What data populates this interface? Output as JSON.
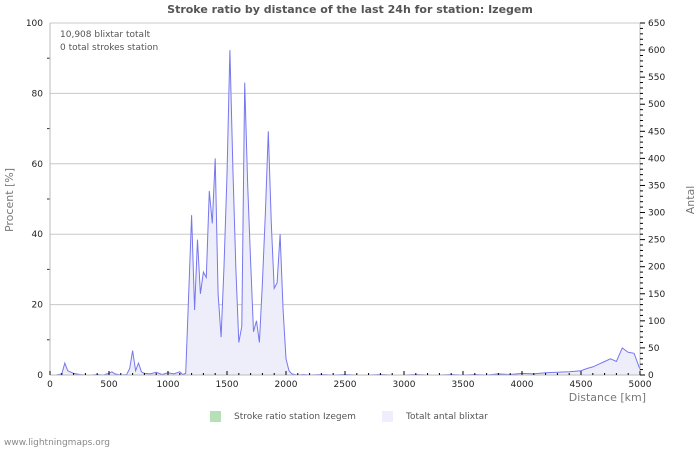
{
  "title": "Stroke ratio by distance of the last 24h for station: Izegem",
  "info": {
    "line1": "10,908 blixtar totalt",
    "line2": "0 total strokes station"
  },
  "axes": {
    "left_title": "Procent   [%]",
    "right_title": "Antal",
    "x_title": "Distance   [km]",
    "left_ticks": [
      "0",
      "20",
      "40",
      "60",
      "80",
      "100"
    ],
    "right_ticks": [
      "0",
      "50",
      "100",
      "150",
      "200",
      "250",
      "300",
      "350",
      "400",
      "450",
      "500",
      "550",
      "600",
      "650"
    ],
    "x_ticks": [
      "0",
      "500",
      "1000",
      "1500",
      "2000",
      "2500",
      "3000",
      "3500",
      "4000",
      "4500",
      "5000"
    ]
  },
  "legend": {
    "items": [
      {
        "label": "Stroke ratio station Izegem",
        "color": "#b8e0b8"
      },
      {
        "label": "Totalt antal blixtar",
        "color": "#eeeefc"
      }
    ]
  },
  "footer": "www.lightningmaps.org",
  "colors": {
    "line": "#7777ee",
    "fill": "#eeeefb",
    "grid": "#c8c8c8",
    "ratio": "#b8e0b8"
  },
  "chart_data": {
    "type": "area",
    "title": "Stroke ratio by distance of the last 24h for station: Izegem",
    "xlabel": "Distance [km]",
    "ylabel_left": "Procent [%]",
    "ylabel_right": "Antal",
    "xlim": [
      0,
      5000
    ],
    "ylim_left": [
      0,
      100
    ],
    "ylim_right": [
      0,
      650
    ],
    "grid": true,
    "legend_position": "bottom",
    "x": [
      0,
      50,
      100,
      125,
      150,
      200,
      250,
      300,
      350,
      400,
      450,
      500,
      525,
      550,
      600,
      650,
      675,
      700,
      725,
      750,
      775,
      800,
      850,
      900,
      950,
      1000,
      1050,
      1100,
      1125,
      1150,
      1175,
      1200,
      1225,
      1250,
      1275,
      1300,
      1325,
      1350,
      1375,
      1400,
      1425,
      1450,
      1475,
      1500,
      1525,
      1550,
      1575,
      1600,
      1625,
      1650,
      1675,
      1700,
      1725,
      1750,
      1775,
      1800,
      1825,
      1850,
      1875,
      1900,
      1925,
      1950,
      1975,
      2000,
      2025,
      2050,
      2075,
      2100,
      2150,
      2200,
      2300,
      2400,
      2500,
      2600,
      2700,
      2800,
      2900,
      3000,
      3100,
      3200,
      3300,
      3400,
      3500,
      3600,
      3700,
      3800,
      3900,
      4000,
      4100,
      4200,
      4300,
      4400,
      4500,
      4550,
      4600,
      4650,
      4700,
      4750,
      4800,
      4850,
      4880,
      4900,
      4950,
      5000
    ],
    "series": [
      {
        "name": "Totalt antal blixtar",
        "axis": "right",
        "values": [
          0,
          0,
          2,
          22,
          8,
          3,
          1,
          0,
          0,
          1,
          0,
          3,
          6,
          2,
          0,
          1,
          12,
          45,
          8,
          22,
          6,
          3,
          2,
          5,
          1,
          4,
          2,
          6,
          1,
          3,
          150,
          295,
          120,
          250,
          150,
          190,
          180,
          340,
          280,
          400,
          150,
          70,
          200,
          370,
          600,
          380,
          200,
          60,
          90,
          540,
          350,
          210,
          80,
          100,
          60,
          170,
          300,
          450,
          280,
          160,
          170,
          260,
          120,
          30,
          8,
          2,
          1,
          0,
          1,
          0,
          1,
          0,
          1,
          0,
          0,
          1,
          0,
          0,
          1,
          0,
          0,
          1,
          0,
          1,
          0,
          2,
          1,
          3,
          2,
          4,
          5,
          6,
          8,
          12,
          15,
          20,
          25,
          30,
          25,
          50,
          45,
          42,
          40,
          10
        ]
      },
      {
        "name": "Stroke ratio station Izegem",
        "axis": "left",
        "values": []
      }
    ]
  }
}
